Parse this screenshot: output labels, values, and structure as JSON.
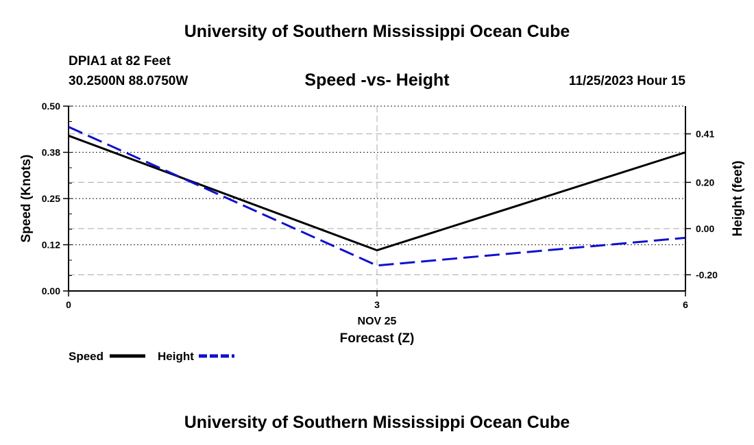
{
  "header": {
    "title": "University of Southern Mississippi Ocean Cube",
    "station": "DPIA1 at 82 Feet",
    "coords": "30.2500N  88.0750W",
    "chart_title": "Speed -vs- Height",
    "datetime": "11/25/2023 Hour 15"
  },
  "footer": {
    "title": "University of Southern Mississippi Ocean Cube"
  },
  "chart_data": {
    "type": "line",
    "title": "Speed -vs- Height",
    "xlabel": "Forecast (Z)",
    "x_date_label": "NOV 25",
    "x": [
      0,
      3,
      6
    ],
    "xlim": [
      0,
      6
    ],
    "x_ticks": [
      0,
      3,
      6
    ],
    "x_tick_labels": [
      "0",
      "3",
      "6"
    ],
    "ylabel_left": "Speed (Knots)",
    "ylim_left": [
      0,
      0.5
    ],
    "y_ticks_left": [
      0.0,
      0.125,
      0.25,
      0.375,
      0.5
    ],
    "y_tick_labels_left": [
      "0.00",
      "0.12",
      "0.25",
      "0.38",
      "0.50"
    ],
    "ylabel_right": "Height (feet)",
    "ylim_right": [
      -0.27,
      0.53
    ],
    "y_ticks_right": [
      -0.2,
      0.0,
      0.2,
      0.41
    ],
    "y_tick_labels_right": [
      "-0.20",
      "0.00",
      "0.20",
      "0.41"
    ],
    "grid": true,
    "series": [
      {
        "name": "Speed",
        "axis": "left",
        "color": "#000000",
        "dash": "solid",
        "values": [
          0.42,
          0.11,
          0.375
        ]
      },
      {
        "name": "Height",
        "axis": "right",
        "color": "#1010cc",
        "dash": "dashed",
        "values": [
          0.44,
          -0.16,
          -0.04
        ]
      }
    ],
    "legend": {
      "position": "bottom-left",
      "items": [
        {
          "label": "Speed",
          "color": "#000000",
          "dash": "solid"
        },
        {
          "label": "Height",
          "color": "#1010cc",
          "dash": "dashed"
        }
      ]
    }
  }
}
